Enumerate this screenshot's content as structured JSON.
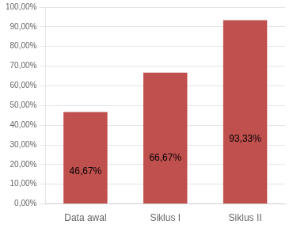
{
  "chart_data": {
    "type": "bar",
    "categories": [
      "Data awal",
      "Siklus I",
      "Siklus II"
    ],
    "values": [
      46.67,
      66.67,
      93.33
    ],
    "value_labels": [
      "46,67%",
      "66,67%",
      "93,33%"
    ],
    "data_labels": true,
    "color": "#C0504D",
    "ylim": [
      0,
      100
    ],
    "yticks": [
      {
        "value": 0,
        "label": "0,00%"
      },
      {
        "value": 10,
        "label": "10,00%"
      },
      {
        "value": 20,
        "label": "20,00%"
      },
      {
        "value": 30,
        "label": "30,00%"
      },
      {
        "value": 40,
        "label": "40,00%"
      },
      {
        "value": 50,
        "label": "50,00%"
      },
      {
        "value": 60,
        "label": "60,00%"
      },
      {
        "value": 70,
        "label": "70,00%"
      },
      {
        "value": 80,
        "label": "80,00%"
      },
      {
        "value": 90,
        "label": "90,00%"
      },
      {
        "value": 100,
        "label": "100,00%"
      }
    ],
    "grid": true
  }
}
